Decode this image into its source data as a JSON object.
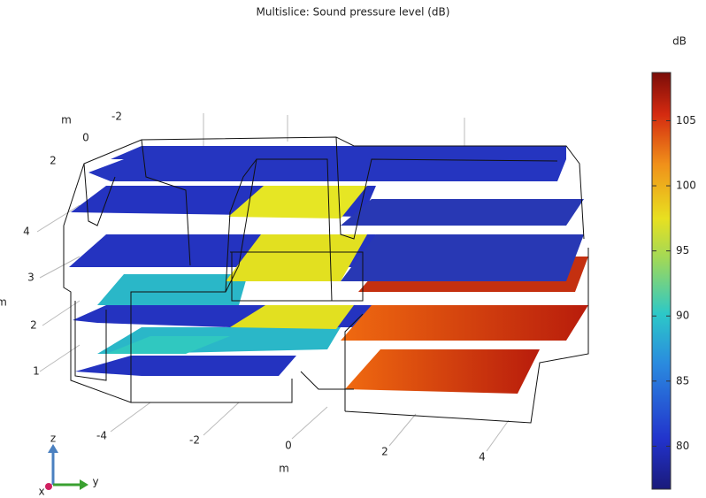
{
  "title": "Multislice: Sound pressure level (dB)",
  "colorbar": {
    "unit": "dB",
    "lim": [
      76.7,
      108.7
    ],
    "ticks": [
      80,
      85,
      90,
      95,
      100,
      105
    ]
  },
  "axes": {
    "x": {
      "ticks": [
        "-4",
        "-2",
        "0",
        "2",
        "4"
      ],
      "label": "m"
    },
    "y": {
      "ticks": [
        "-2",
        "0",
        "2"
      ],
      "label": "m"
    },
    "z": {
      "ticks": [
        "1",
        "2",
        "3",
        "4"
      ],
      "label": "m"
    }
  },
  "triad": {
    "z": "z",
    "y": "y",
    "x": "x"
  }
}
